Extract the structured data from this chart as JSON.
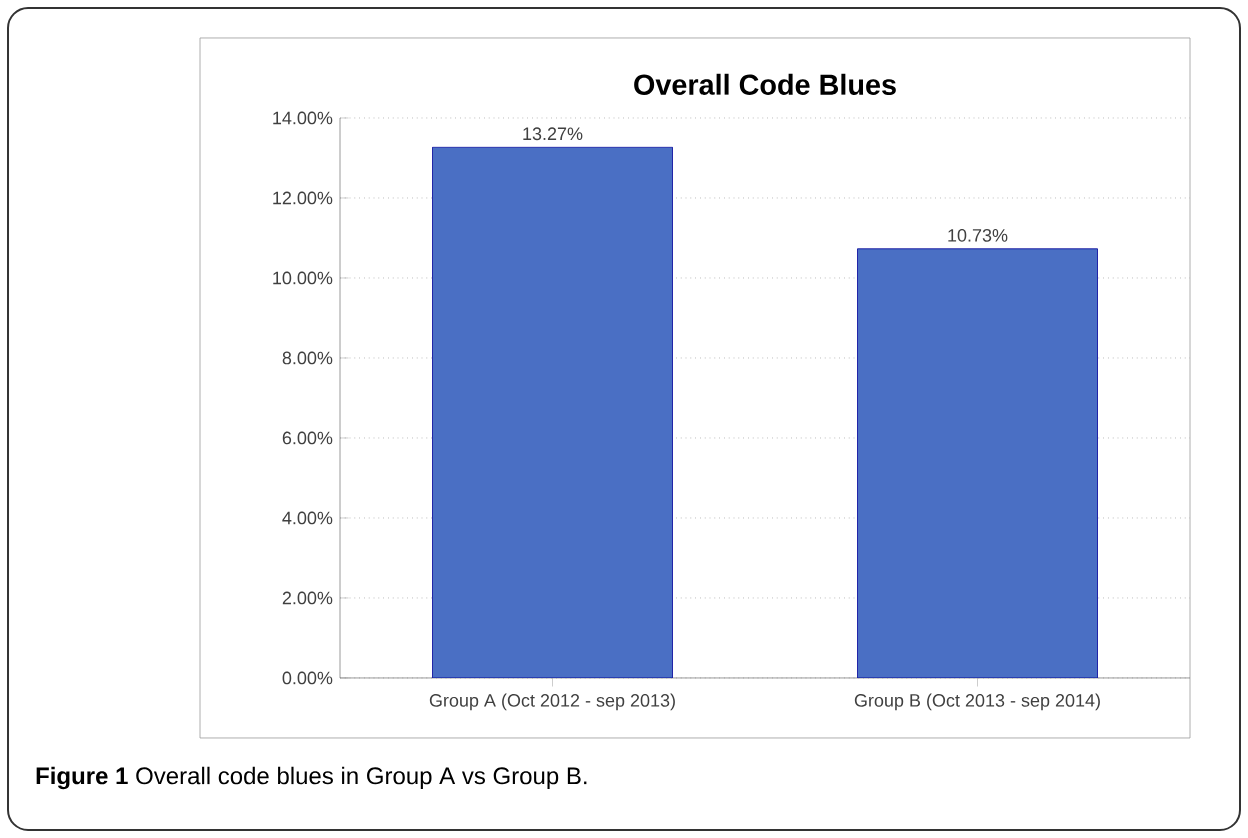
{
  "chart_data": {
    "type": "bar",
    "title": "Overall Code Blues",
    "categories": [
      "Group A (Oct 2012 - sep 2013)",
      "Group B (Oct 2013 - sep 2014)"
    ],
    "values": [
      13.27,
      10.73
    ],
    "color": "#4a6fc4",
    "value_labels": [
      "13.27%",
      "10.73%"
    ],
    "ylim": [
      0,
      14
    ],
    "yticks": [
      {
        "value": 0,
        "label": "0.00%"
      },
      {
        "value": 2,
        "label": "2.00%"
      },
      {
        "value": 4,
        "label": "4.00%"
      },
      {
        "value": 6,
        "label": "6.00%"
      },
      {
        "value": 8,
        "label": "8.00%"
      },
      {
        "value": 10,
        "label": "10.00%"
      },
      {
        "value": 12,
        "label": "12.00%"
      },
      {
        "value": 14,
        "label": "14.00%"
      }
    ],
    "grid": "y",
    "annotations": [
      "**Figure 1** Overall code blues in Group A vs Group B."
    ]
  }
}
